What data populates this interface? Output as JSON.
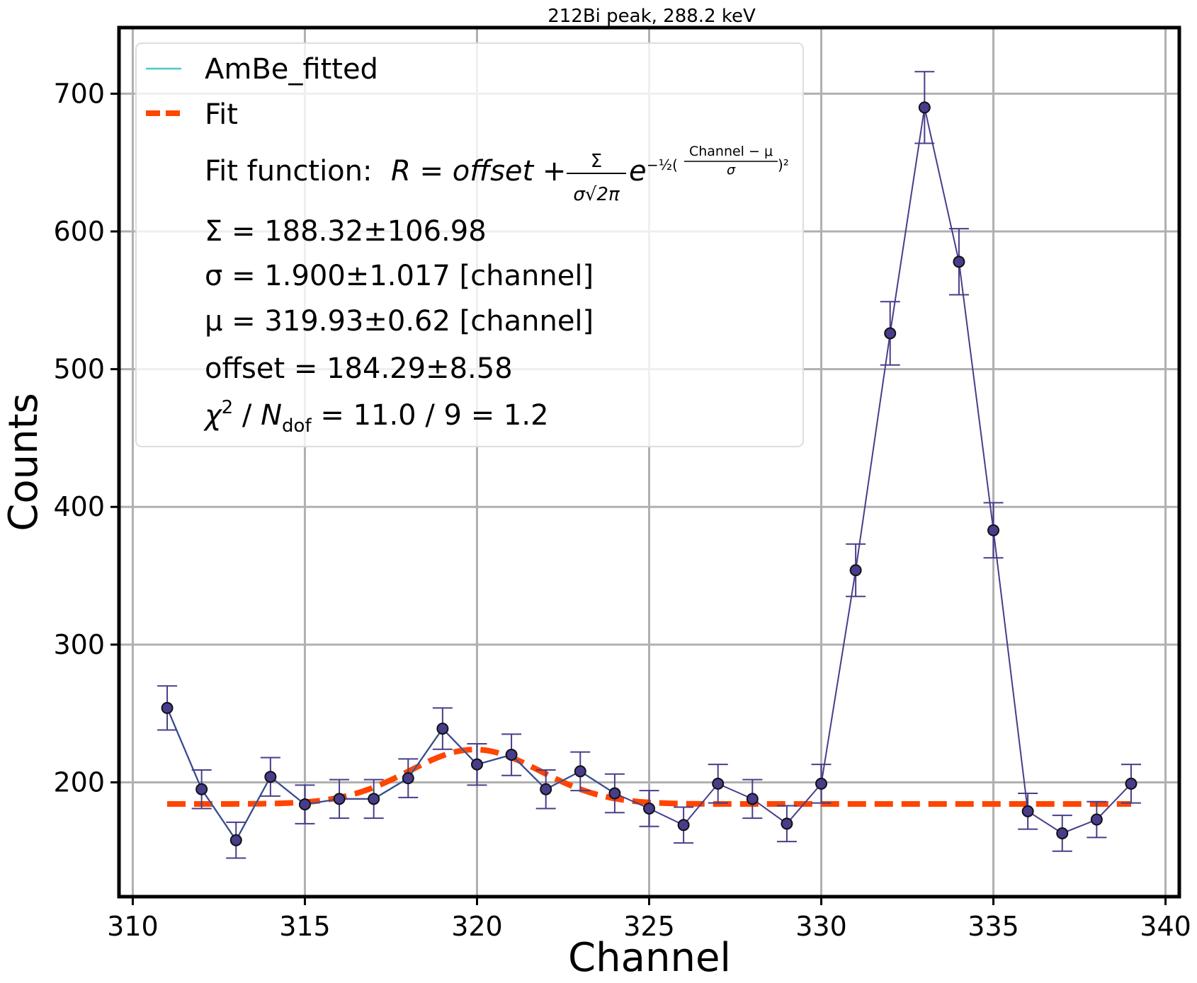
{
  "chart_data": {
    "type": "scatter",
    "title": "212Bi peak, 288.2 keV",
    "xlabel": "Channel",
    "ylabel": "Counts",
    "xlim": [
      309.6,
      340.4
    ],
    "ylim": [
      117,
      748
    ],
    "xticks": [
      310,
      315,
      320,
      325,
      330,
      335,
      340
    ],
    "yticks": [
      200,
      300,
      400,
      500,
      600,
      700
    ],
    "grid": true,
    "legend_position": "upper-left",
    "series": [
      {
        "name": "AmBe_fitted",
        "style": "line",
        "color": "#4cc9c6",
        "x": [
          311,
          312,
          313,
          314,
          315,
          316,
          317,
          318,
          319,
          320,
          321,
          322,
          323,
          324
        ],
        "y": [
          254,
          195,
          158,
          204,
          184,
          188,
          188,
          203,
          239,
          213,
          220,
          195,
          208,
          192
        ]
      },
      {
        "name": "Fit",
        "style": "dashed",
        "color": "#ff4500",
        "function": "offset + Sigma/(sigma*sqrt(2*pi)) * exp(-0.5*((x-mu)/sigma)^2)",
        "params": {
          "Sigma": 188.32,
          "sigma": 1.9,
          "mu": 319.93,
          "offset": 184.29
        },
        "x_range": [
          311,
          339
        ]
      },
      {
        "style": "errorbar",
        "color": "#483d8b",
        "x": [
          311,
          312,
          313,
          314,
          315,
          316,
          317,
          318,
          319,
          320,
          321,
          322,
          323,
          324,
          325,
          326,
          327,
          328,
          329,
          330,
          331,
          332,
          333,
          334,
          335,
          336,
          337,
          338,
          339
        ],
        "y": [
          254,
          195,
          158,
          204,
          184,
          188,
          188,
          203,
          239,
          213,
          220,
          195,
          208,
          192,
          181,
          169,
          199,
          188,
          170,
          199,
          354,
          526,
          690,
          578,
          383,
          179,
          163,
          173,
          199
        ],
        "yerr": [
          16,
          14,
          13,
          14,
          14,
          14,
          14,
          14,
          15,
          15,
          15,
          14,
          14,
          14,
          13,
          13,
          14,
          14,
          13,
          14,
          19,
          23,
          26,
          24,
          20,
          13,
          13,
          13,
          14
        ]
      }
    ],
    "legend": {
      "entries": [
        "AmBe_fitted",
        "Fit"
      ],
      "fit_function_label": "Fit function: ",
      "fit_function_formula": "R = offset + Σ/(σ√2π) e^(−½((Channel−μ)/σ)²)",
      "sigma_sum": "Σ = 188.32±106.98",
      "sigma": "σ = 1.900±1.017 [channel]",
      "mu": "μ = 319.93±0.62 [channel]",
      "offset": "offset = 184.29±8.58",
      "chi2": "χ² / N_dof = 11.0 / 9 = 1.2"
    }
  }
}
